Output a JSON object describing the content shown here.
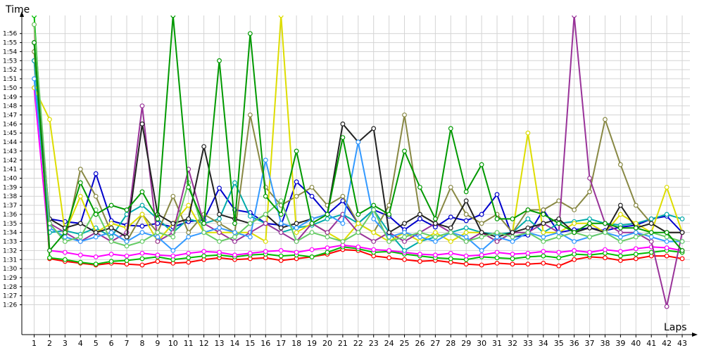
{
  "chart_data": {
    "type": "line",
    "ylabel": "Time",
    "xlabel": "Laps",
    "grid": true,
    "x_ticks": [
      1,
      2,
      3,
      4,
      5,
      6,
      7,
      8,
      9,
      10,
      11,
      12,
      13,
      14,
      15,
      16,
      17,
      18,
      19,
      20,
      21,
      22,
      23,
      24,
      25,
      26,
      27,
      28,
      29,
      30,
      31,
      32,
      33,
      34,
      35,
      36,
      37,
      38,
      39,
      40,
      41,
      42,
      43
    ],
    "y_tick_labels": [
      "1:26",
      "1:27",
      "1:28",
      "1:29",
      "1:30",
      "1:31",
      "1:32",
      "1:33",
      "1:34",
      "1:35",
      "1:36",
      "1:37",
      "1:38",
      "1:39",
      "1:40",
      "1:41",
      "1:42",
      "1:43",
      "1:44",
      "1:45",
      "1:46",
      "1:47",
      "1:48",
      "1:49",
      "1:50",
      "1:51",
      "1:52",
      "1:53",
      "1:54",
      "1:55",
      "1:56"
    ],
    "y_tick_values": [
      86,
      87,
      88,
      89,
      90,
      91,
      92,
      93,
      94,
      95,
      96,
      97,
      98,
      99,
      100,
      101,
      102,
      103,
      104,
      105,
      106,
      107,
      108,
      109,
      110,
      111,
      112,
      113,
      114,
      115,
      116
    ],
    "xlim": [
      0.2,
      43.5
    ],
    "ylim": [
      82.7,
      118
    ],
    "series": [
      {
        "color": "#ff0000",
        "values": [
          117,
          91.1,
          90.8,
          90.6,
          90.4,
          90.6,
          90.5,
          90.4,
          90.8,
          90.6,
          90.7,
          91.0,
          91.2,
          91.0,
          91.1,
          91.2,
          90.9,
          91.1,
          91.3,
          91.6,
          92.1,
          92.0,
          91.4,
          91.2,
          91.0,
          90.8,
          90.9,
          90.7,
          90.5,
          90.4,
          90.6,
          90.5,
          90.5,
          90.6,
          90.3,
          91.0,
          91.3,
          91.2,
          90.9,
          91.1,
          91.4,
          91.4,
          91.1
        ]
      },
      {
        "color": "#00bb00",
        "values": [
          118,
          91.2,
          91.0,
          90.7,
          90.5,
          90.8,
          90.9,
          91.1,
          91.3,
          91.0,
          91.2,
          91.4,
          91.5,
          91.3,
          91.5,
          91.6,
          91.4,
          91.5,
          91.3,
          91.8,
          92.4,
          92.2,
          91.8,
          91.9,
          91.6,
          91.4,
          91.2,
          91.1,
          91.0,
          91.3,
          91.2,
          91.1,
          91.3,
          91.4,
          91.2,
          91.6,
          91.5,
          91.7,
          91.4,
          91.6,
          91.8,
          92.0,
          91.8
        ]
      },
      {
        "color": "#ff00ff",
        "values": [
          110,
          92.0,
          91.8,
          91.5,
          91.3,
          91.6,
          91.4,
          91.7,
          91.5,
          91.4,
          91.7,
          91.9,
          91.8,
          91.5,
          91.7,
          91.9,
          92.0,
          91.8,
          92.1,
          92.3,
          92.6,
          92.4,
          92.1,
          92.0,
          91.8,
          91.6,
          91.5,
          91.7,
          91.4,
          91.5,
          91.8,
          91.6,
          91.7,
          91.9,
          91.8,
          92.0,
          91.8,
          92.1,
          91.9,
          92.2,
          92.4,
          92.3,
          92.0
        ]
      },
      {
        "color": "#0000cc",
        "values": [
          113,
          95.5,
          95.2,
          95.0,
          100.5,
          95.3,
          94.8,
          94.7,
          95.0,
          94.6,
          95.2,
          95.4,
          98.9,
          96.5,
          96.2,
          95.0,
          94.8,
          99.6,
          98.0,
          96.0,
          97.5,
          95.0,
          96.5,
          95.8,
          94.3,
          95.5,
          94.6,
          95.7,
          95.3,
          96.0,
          98.2,
          93.5,
          93.7,
          96.5,
          94.0,
          94.3,
          94.5,
          94.2,
          94.6,
          94.8,
          95.5,
          95.8,
          94.0
        ]
      },
      {
        "color": "#00aaaa",
        "values": [
          113,
          94.0,
          94.2,
          93.8,
          94.5,
          93.5,
          96.0,
          97.0,
          95.5,
          94.0,
          95.5,
          95.0,
          95.5,
          99.5,
          95.8,
          95.0,
          94.0,
          94.5,
          94.8,
          95.5,
          96.0,
          95.0,
          96.5,
          94.0,
          92.0,
          93.0,
          93.5,
          94.0,
          94.5,
          94.0,
          93.8,
          94.0,
          95.5,
          94.0,
          95.0,
          95.2,
          95.5,
          95.0,
          94.8,
          95.0,
          95.5,
          96.0,
          95.5
        ]
      },
      {
        "color": "#888844",
        "values": [
          114,
          95.0,
          93.0,
          101.0,
          98.0,
          94.0,
          93.0,
          96.0,
          94.0,
          98.0,
          94.0,
          96.0,
          95.0,
          94.0,
          107.0,
          99.0,
          97.0,
          98.0,
          99.0,
          97.0,
          98.0,
          95.0,
          94.0,
          97.0,
          107.0,
          96.0,
          95.0,
          99.0,
          96.0,
          95.0,
          96.0,
          94.0,
          96.5,
          96.5,
          97.5,
          96.5,
          98.5,
          106.5,
          101.5,
          97.0,
          95.0,
          94.0,
          94.0
        ]
      },
      {
        "color": "#dddd00",
        "values": [
          110,
          106.5,
          94.0,
          98.0,
          94.0,
          95.0,
          94.5,
          96.0,
          93.0,
          95.0,
          97.0,
          94.0,
          94.0,
          94.0,
          94.0,
          93.0,
          118,
          94.0,
          95.0,
          94.0,
          93.0,
          95.0,
          94.0,
          93.0,
          94.0,
          93.0,
          94.0,
          93.0,
          94.0,
          94.0,
          93.0,
          94.0,
          105.0,
          94.0,
          94.0,
          95.0,
          95.0,
          94.0,
          96.0,
          95.0,
          94.0,
          99.0,
          94.0
        ]
      },
      {
        "color": "#993399",
        "values": [
          115,
          95.0,
          94.0,
          93.0,
          94.0,
          93.0,
          94.0,
          108.0,
          93.0,
          94.0,
          101.0,
          95.0,
          94.0,
          93.0,
          94.0,
          95.0,
          94.0,
          93.0,
          95.0,
          94.0,
          96.0,
          94.0,
          93.0,
          94.0,
          93.0,
          94.0,
          95.0,
          94.0,
          93.0,
          94.0,
          93.0,
          94.0,
          94.0,
          95.0,
          94.0,
          118,
          100.0,
          95.0,
          94.0,
          94.0,
          93.0,
          85.8,
          94.0
        ]
      },
      {
        "color": "#222222",
        "values": [
          115,
          95.5,
          94.5,
          95.0,
          94.0,
          94.5,
          93.5,
          106.0,
          96.0,
          95.0,
          95.5,
          103.5,
          96.0,
          95.5,
          95.0,
          96.0,
          94.5,
          95.0,
          95.5,
          96.0,
          106.0,
          104.0,
          105.5,
          94.0,
          95.0,
          96.0,
          95.0,
          94.5,
          97.5,
          94.0,
          93.5,
          94.0,
          94.5,
          95.0,
          95.5,
          94.0,
          94.5,
          94.0,
          97.0,
          94.5,
          95.0,
          94.0,
          94.0
        ]
      },
      {
        "color": "#3399ff",
        "values": [
          111,
          94.5,
          93.5,
          93.0,
          93.5,
          94.0,
          93.0,
          94.0,
          93.5,
          92.0,
          93.5,
          94.0,
          94.5,
          94.0,
          93.5,
          102.0,
          95.0,
          94.5,
          95.5,
          96.0,
          95.0,
          104.0,
          95.5,
          93.5,
          94.0,
          93.5,
          93.0,
          94.0,
          93.5,
          92.0,
          93.5,
          93.0,
          94.0,
          93.5,
          94.0,
          93.0,
          93.5,
          94.0,
          93.5,
          94.0,
          93.5,
          93.0,
          93.0
        ]
      },
      {
        "color": "#66cc66",
        "values": [
          117,
          95.0,
          93.0,
          93.5,
          96.5,
          93.0,
          92.5,
          93.0,
          94.0,
          93.5,
          99.5,
          94.0,
          93.0,
          93.5,
          95.0,
          96.0,
          97.5,
          93.0,
          94.0,
          93.5,
          93.0,
          94.0,
          96.5,
          93.0,
          93.5,
          94.0,
          93.5,
          94.0,
          93.0,
          93.5,
          94.0,
          93.5,
          94.0,
          93.0,
          93.5,
          94.0,
          93.5,
          94.0,
          93.0,
          93.5,
          94.0,
          93.5,
          93.0
        ]
      },
      {
        "color": "#009900",
        "values": [
          115,
          92.0,
          94.0,
          99.5,
          96.0,
          97.0,
          96.5,
          98.5,
          95.5,
          118,
          99.0,
          95.0,
          113.0,
          95.0,
          116.0,
          98.0,
          96.0,
          103.0,
          95.0,
          96.0,
          104.5,
          96.0,
          97.0,
          96.0,
          103.0,
          99.0,
          95.5,
          105.5,
          98.5,
          101.5,
          95.5,
          95.5,
          96.5,
          96.0,
          95.0,
          94.0,
          95.0,
          95.0,
          94.5,
          94.5,
          94.0,
          94.0,
          92.0
        ]
      }
    ]
  }
}
